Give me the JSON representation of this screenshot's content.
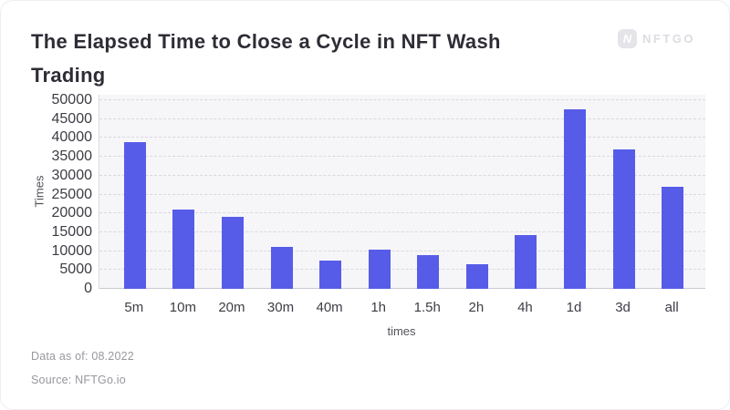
{
  "header": {
    "title_line1": "The Elapsed Time to Close a Cycle in NFT Wash",
    "title_line2": "Trading",
    "logo": {
      "icon": "N",
      "text": "NFTGO"
    }
  },
  "chart_data": {
    "type": "bar",
    "title": "The Elapsed Time to Close a Cycle in NFT Wash Trading",
    "categories": [
      "5m",
      "10m",
      "20m",
      "30m",
      "40m",
      "1h",
      "1.5h",
      "2h",
      "4h",
      "1d",
      "3d",
      "all"
    ],
    "values": [
      39000,
      21000,
      19000,
      11000,
      7400,
      10300,
      9000,
      6500,
      14200,
      47600,
      36900,
      27000
    ],
    "xlabel": "times",
    "ylabel": "Times",
    "ylim": [
      0,
      50000
    ],
    "ytick_step": 5000,
    "grid": true,
    "grid_style": "dashed",
    "legend": false,
    "bar_color": "#575ce8",
    "plot_bg_color": "#f6f6f9"
  },
  "footer": {
    "data_as_of": "Data as of: 08.2022",
    "source": "Source: NFTGo.io"
  }
}
